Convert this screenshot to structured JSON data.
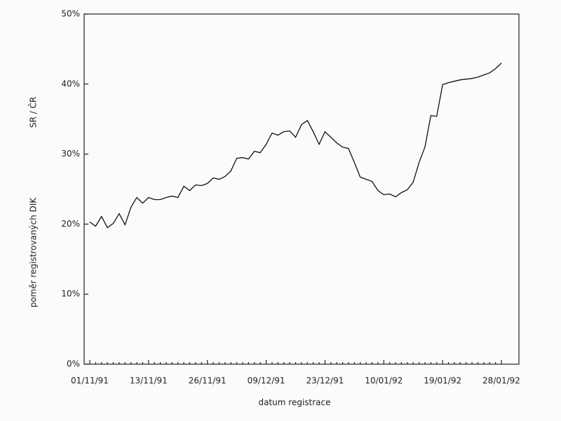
{
  "chart_data": {
    "type": "line",
    "y_label": "poměr registrovaných DIK",
    "y_label_2": "SR / ČR",
    "x_label": "datum registrace",
    "categories": [
      "01/11/91",
      null,
      null,
      null,
      null,
      null,
      null,
      null,
      null,
      null,
      "13/11/91",
      null,
      null,
      null,
      null,
      null,
      null,
      null,
      null,
      null,
      "26/11/91",
      null,
      null,
      null,
      null,
      null,
      null,
      null,
      null,
      null,
      "09/12/91",
      null,
      null,
      null,
      null,
      null,
      null,
      null,
      null,
      null,
      "23/12/91",
      null,
      null,
      null,
      null,
      null,
      null,
      null,
      null,
      null,
      "10/01/92",
      null,
      null,
      null,
      null,
      null,
      null,
      null,
      null,
      null,
      "19/01/92",
      null,
      null,
      null,
      null,
      null,
      null,
      null,
      null,
      null,
      "28/01/92"
    ],
    "values": [
      20.3,
      19.7,
      21.1,
      19.5,
      20.1,
      21.5,
      19.9,
      22.4,
      23.8,
      23.0,
      23.8,
      23.5,
      23.5,
      23.8,
      24.0,
      23.8,
      25.4,
      24.8,
      25.6,
      25.5,
      25.8,
      26.6,
      26.4,
      26.8,
      27.6,
      29.4,
      29.5,
      29.3,
      30.4,
      30.2,
      31.4,
      33.0,
      32.7,
      33.2,
      33.3,
      32.4,
      34.2,
      34.8,
      33.2,
      31.4,
      33.2,
      32.4,
      31.6,
      31.0,
      30.8,
      28.8,
      26.7,
      26.4,
      26.1,
      24.8,
      24.2,
      24.3,
      23.9,
      24.5,
      24.9,
      26.0,
      28.8,
      31.0,
      35.5,
      35.4,
      39.9,
      40.2,
      40.4,
      40.6,
      40.7,
      40.8,
      41.0,
      41.3,
      41.6,
      42.2,
      43.0
    ],
    "color": "#111111",
    "ylim": [
      0,
      50
    ],
    "yticks": [
      {
        "value": 0,
        "label": "0%"
      },
      {
        "value": 10,
        "label": "10%"
      },
      {
        "value": 20,
        "label": "20%"
      },
      {
        "value": 30,
        "label": "30%"
      },
      {
        "value": 40,
        "label": "40%"
      },
      {
        "value": 50,
        "label": "50%"
      }
    ],
    "grid": false
  }
}
